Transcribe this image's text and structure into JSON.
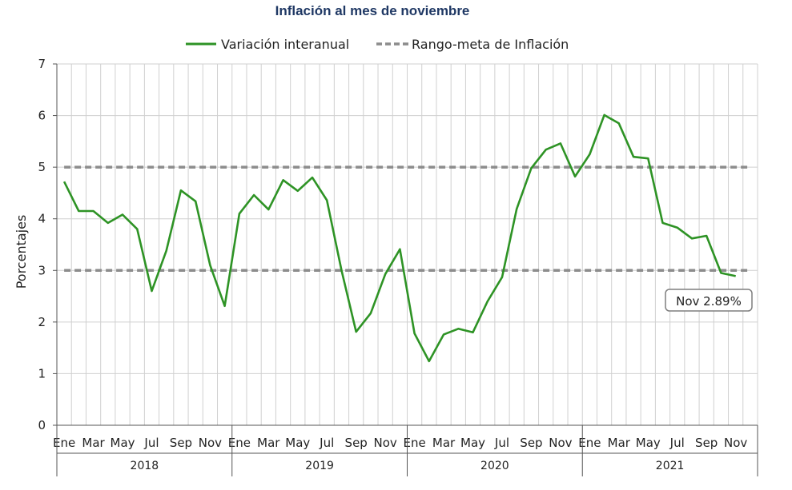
{
  "chart_data": {
    "type": "line",
    "title": "Inflación al mes de noviembre",
    "ylabel": "Porcentajes",
    "ylim": [
      0,
      7
    ],
    "yticks": [
      "0",
      "1",
      "2",
      "3",
      "4",
      "5",
      "6",
      "7"
    ],
    "grid": true,
    "legend_position": "top",
    "month_labels": [
      "Ene",
      "Mar",
      "May",
      "Jul",
      "Sep",
      "Nov"
    ],
    "years": [
      "2018",
      "2019",
      "2020",
      "2021"
    ],
    "x": [
      "2018-01",
      "2018-02",
      "2018-03",
      "2018-04",
      "2018-05",
      "2018-06",
      "2018-07",
      "2018-08",
      "2018-09",
      "2018-10",
      "2018-11",
      "2018-12",
      "2019-01",
      "2019-02",
      "2019-03",
      "2019-04",
      "2019-05",
      "2019-06",
      "2019-07",
      "2019-08",
      "2019-09",
      "2019-10",
      "2019-11",
      "2019-12",
      "2020-01",
      "2020-02",
      "2020-03",
      "2020-04",
      "2020-05",
      "2020-06",
      "2020-07",
      "2020-08",
      "2020-09",
      "2020-10",
      "2020-11",
      "2020-12",
      "2021-01",
      "2021-02",
      "2021-03",
      "2021-04",
      "2021-05",
      "2021-06",
      "2021-07",
      "2021-08",
      "2021-09",
      "2021-10",
      "2021-11"
    ],
    "series": [
      {
        "name": "Variación interanual",
        "color": "#2e9325",
        "style": "solid",
        "values": [
          4.72,
          4.15,
          4.15,
          3.92,
          4.08,
          3.8,
          2.6,
          3.38,
          4.55,
          4.34,
          3.1,
          2.31,
          4.1,
          4.46,
          4.18,
          4.75,
          4.54,
          4.8,
          4.36,
          3.0,
          1.81,
          2.17,
          2.93,
          3.41,
          1.78,
          1.24,
          1.76,
          1.87,
          1.8,
          2.4,
          2.87,
          4.19,
          4.98,
          5.34,
          5.46,
          4.82,
          5.25,
          6.01,
          5.85,
          5.2,
          5.17,
          3.92,
          3.83,
          3.62,
          3.67,
          2.95,
          2.89
        ]
      },
      {
        "name": "Rango-meta de Inflación",
        "color": "#8c8c8c",
        "style": "dashed",
        "bands": [
          3,
          5
        ]
      }
    ],
    "annotation": "Nov 2.89%"
  }
}
